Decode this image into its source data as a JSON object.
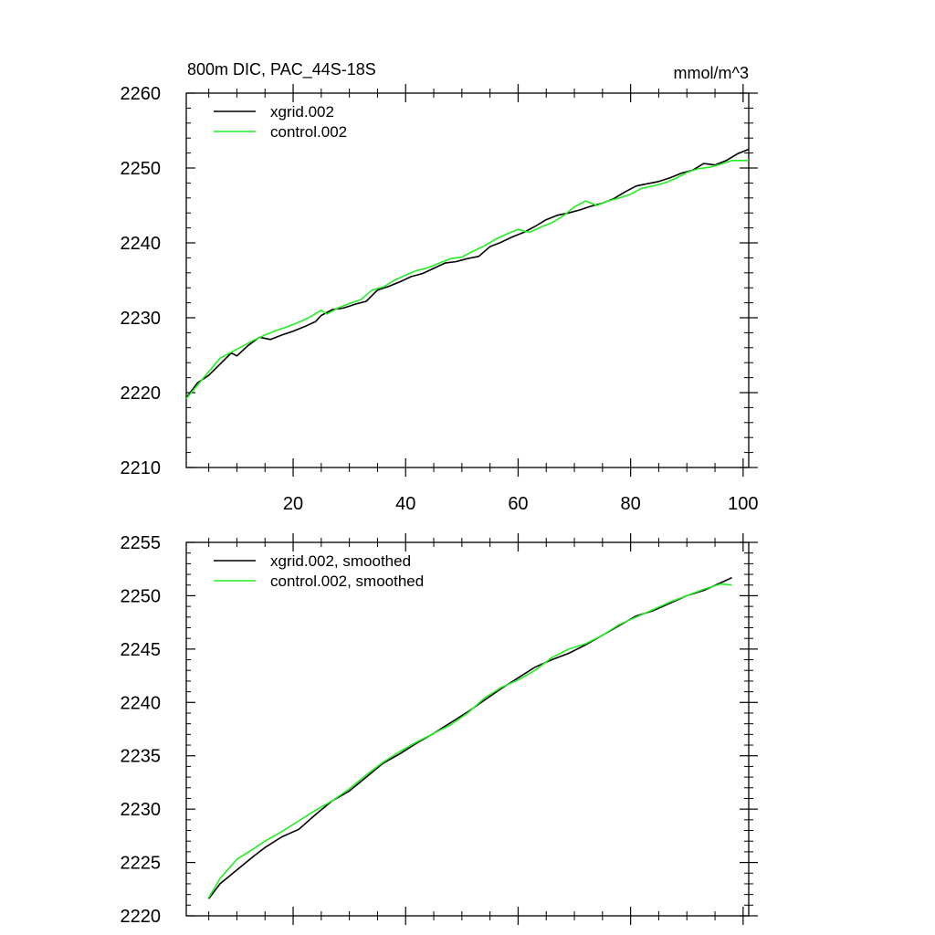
{
  "figure_title": "800m DIC, PAC_44S-18S",
  "units": "mmol/m^3",
  "colors": {
    "xgrid": "#000000",
    "control": "#22ee22",
    "axis": "#000000"
  },
  "chart_data": [
    {
      "type": "line",
      "panel": "top",
      "title": "800m DIC, PAC_44S-18S",
      "units_label": "mmol/m^3",
      "xlim": [
        1,
        101
      ],
      "ylim": [
        2210,
        2260
      ],
      "xticks": [
        20,
        40,
        60,
        80,
        100
      ],
      "x_tick_labels": [
        "20",
        "40",
        "60",
        "80",
        "100"
      ],
      "yticks": [
        2210,
        2220,
        2230,
        2240,
        2250,
        2260
      ],
      "y_tick_labels": [
        "2210",
        "2220",
        "2230",
        "2240",
        "2250",
        "2260"
      ],
      "legend_position": "top-left",
      "series": [
        {
          "name": "xgrid.002",
          "color_key": "xgrid",
          "x": [
            1,
            3,
            5,
            7,
            9,
            10,
            12,
            14,
            16,
            18,
            20,
            22,
            24,
            25,
            27,
            29,
            31,
            33,
            35,
            37,
            39,
            41,
            43,
            45,
            47,
            49,
            51,
            53,
            55,
            57,
            59,
            61,
            63,
            65,
            67,
            69,
            71,
            73,
            75,
            77,
            79,
            81,
            83,
            85,
            87,
            89,
            91,
            93,
            95,
            97,
            99,
            101
          ],
          "values": [
            2219.3,
            2221.3,
            2222.3,
            2223.8,
            2225.3,
            2224.9,
            2226.3,
            2227.4,
            2227.1,
            2227.7,
            2228.2,
            2228.8,
            2229.5,
            2230.3,
            2231.1,
            2231.3,
            2231.8,
            2232.2,
            2233.7,
            2234.2,
            2234.8,
            2235.5,
            2235.9,
            2236.6,
            2237.3,
            2237.5,
            2237.9,
            2238.2,
            2239.5,
            2240.1,
            2240.8,
            2241.4,
            2242.2,
            2243.1,
            2243.7,
            2244.0,
            2244.4,
            2244.9,
            2245.3,
            2245.9,
            2246.8,
            2247.6,
            2247.9,
            2248.2,
            2248.7,
            2249.3,
            2249.7,
            2250.6,
            2250.4,
            2251.0,
            2251.9,
            2252.5
          ]
        },
        {
          "name": "control.002",
          "color_key": "control",
          "x": [
            1,
            3,
            5,
            7,
            9,
            11,
            13,
            15,
            17,
            19,
            21,
            23,
            25,
            26,
            28,
            30,
            32,
            34,
            36,
            38,
            40,
            42,
            44,
            46,
            48,
            50,
            52,
            54,
            56,
            58,
            60,
            62,
            64,
            66,
            68,
            70,
            72,
            74,
            76,
            78,
            80,
            82,
            84,
            86,
            88,
            90,
            92,
            94,
            96,
            98,
            101
          ],
          "values": [
            2219.2,
            2221.0,
            2222.8,
            2224.6,
            2225.4,
            2226.2,
            2227.0,
            2227.7,
            2228.3,
            2228.8,
            2229.4,
            2230.1,
            2231.0,
            2230.5,
            2231.3,
            2231.9,
            2232.4,
            2233.7,
            2234.1,
            2235.0,
            2235.7,
            2236.3,
            2236.7,
            2237.3,
            2237.9,
            2238.1,
            2238.9,
            2239.6,
            2240.5,
            2241.2,
            2241.8,
            2241.4,
            2242.1,
            2242.7,
            2243.6,
            2244.8,
            2245.6,
            2245.0,
            2245.6,
            2246.0,
            2246.5,
            2247.3,
            2247.6,
            2248.0,
            2248.6,
            2249.4,
            2249.9,
            2250.1,
            2250.5,
            2251.0,
            2251.0
          ]
        }
      ]
    },
    {
      "type": "line",
      "panel": "bottom",
      "title": "",
      "xlim": [
        1,
        101
      ],
      "ylim": [
        2220,
        2255
      ],
      "xticks": [
        20,
        40,
        60,
        80,
        100
      ],
      "x_tick_labels": [],
      "yticks": [
        2220,
        2225,
        2230,
        2235,
        2240,
        2245,
        2250,
        2255
      ],
      "y_tick_labels": [
        "2220",
        "2225",
        "2230",
        "2235",
        "2240",
        "2245",
        "2250",
        "2255"
      ],
      "legend_position": "top-left",
      "series": [
        {
          "name": "xgrid.002, smoothed",
          "color_key": "xgrid",
          "x": [
            5,
            7,
            10,
            13,
            15,
            18,
            21,
            24,
            27,
            30,
            33,
            36,
            39,
            42,
            45,
            48,
            51,
            54,
            57,
            60,
            63,
            66,
            69,
            72,
            75,
            78,
            81,
            84,
            87,
            90,
            93,
            96,
            98
          ],
          "values": [
            2221.6,
            2223.0,
            2224.3,
            2225.6,
            2226.4,
            2227.4,
            2228.1,
            2229.5,
            2230.8,
            2231.7,
            2233.0,
            2234.3,
            2235.2,
            2236.2,
            2237.1,
            2238.1,
            2239.1,
            2240.2,
            2241.3,
            2242.3,
            2243.3,
            2244.0,
            2244.6,
            2245.4,
            2246.3,
            2247.2,
            2248.1,
            2248.6,
            2249.3,
            2250.0,
            2250.5,
            2251.2,
            2251.7
          ]
        },
        {
          "name": "control.002, smoothed",
          "color_key": "control",
          "x": [
            5,
            7,
            10,
            13,
            15,
            18,
            21,
            24,
            27,
            30,
            33,
            36,
            39,
            42,
            45,
            48,
            51,
            54,
            57,
            60,
            63,
            66,
            69,
            72,
            75,
            78,
            81,
            84,
            87,
            90,
            93,
            96,
            98
          ],
          "values": [
            2221.7,
            2223.5,
            2225.3,
            2226.3,
            2227.0,
            2227.9,
            2228.9,
            2229.9,
            2230.8,
            2231.9,
            2233.2,
            2234.4,
            2235.4,
            2236.3,
            2237.1,
            2237.9,
            2239.0,
            2240.4,
            2241.4,
            2242.1,
            2243.0,
            2244.2,
            2245.0,
            2245.5,
            2246.3,
            2247.3,
            2248.0,
            2248.7,
            2249.4,
            2250.0,
            2250.6,
            2251.1,
            2251.0
          ]
        }
      ]
    }
  ]
}
